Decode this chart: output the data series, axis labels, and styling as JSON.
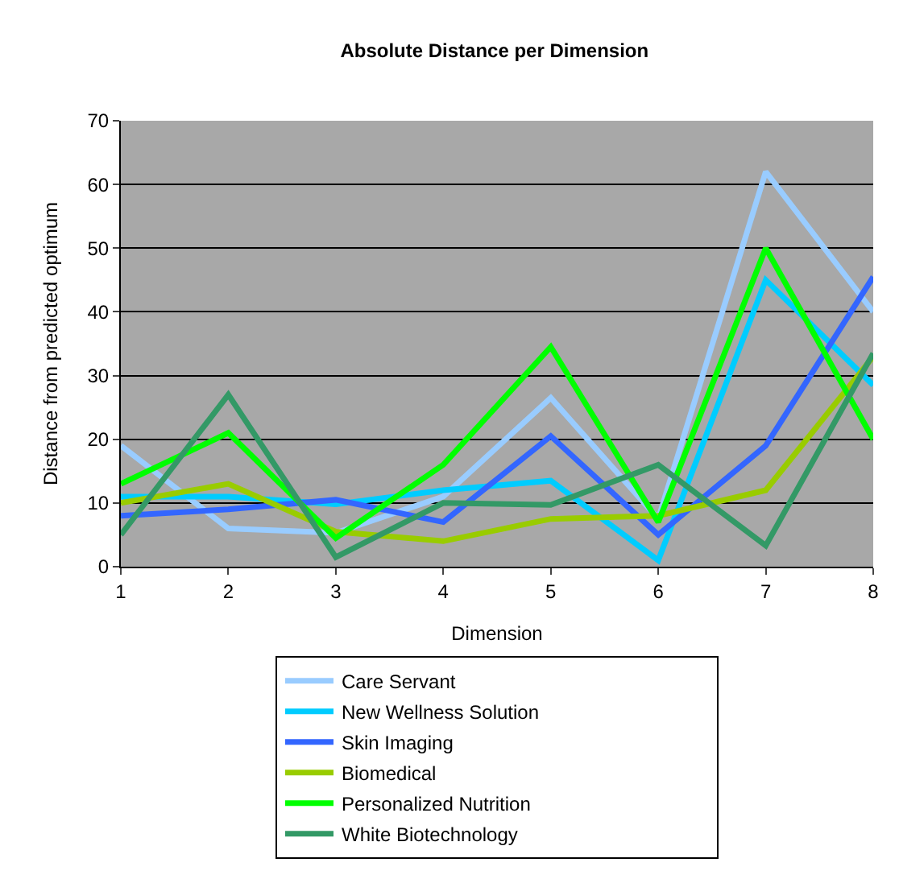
{
  "chart_data": {
    "type": "line",
    "title": "Absolute Distance per Dimension",
    "xlabel": "Dimension",
    "ylabel": "Distance from predicted optimum",
    "x": [
      1,
      2,
      3,
      4,
      5,
      6,
      7,
      8
    ],
    "xlim": [
      1,
      8
    ],
    "xticks": [
      1,
      2,
      3,
      4,
      5,
      6,
      7,
      8
    ],
    "ylim": [
      0,
      70
    ],
    "yticks": [
      0,
      10,
      20,
      30,
      40,
      50,
      60,
      70
    ],
    "grid": "y",
    "legend": "bottom",
    "marker": "none",
    "line_style": "solid",
    "series": [
      {
        "name": "Care Servant",
        "color": "#99ccff",
        "values": [
          19,
          6,
          5.3,
          11,
          26.5,
          7.5,
          62,
          40
        ]
      },
      {
        "name": "New Wellness Solution",
        "color": "#00ccff",
        "values": [
          11,
          11,
          9.8,
          12,
          13.5,
          1,
          45,
          28.5
        ]
      },
      {
        "name": "Skin Imaging",
        "color": "#3366ff",
        "values": [
          8,
          9,
          10.5,
          7,
          20.5,
          5,
          19,
          45.5
        ]
      },
      {
        "name": "Biomedical",
        "color": "#99cc00",
        "values": [
          10,
          13,
          5.5,
          4,
          7.5,
          8,
          12,
          33
        ]
      },
      {
        "name": "Personalized Nutrition",
        "color": "#00ff00",
        "values": [
          13,
          21,
          4.5,
          16,
          34.5,
          7,
          50,
          20
        ]
      },
      {
        "name": "White Biotechnology",
        "color": "#339966",
        "values": [
          5,
          27,
          1.5,
          10,
          9.7,
          16,
          3.3,
          33.5
        ]
      }
    ]
  }
}
